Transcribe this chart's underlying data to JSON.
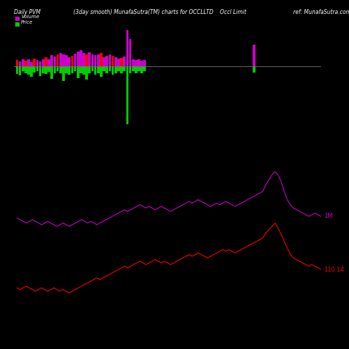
{
  "title_left": "Daily PVM",
  "title_center": "(3day smooth) MunafaSutra(TM) charts for OCCLLTD",
  "title_right_1": "Occl Limit",
  "title_right_2": "ref: MunafaSutra.com",
  "legend_volume_color": "#cc00cc",
  "legend_price_color": "#00cc00",
  "background_color": "#000000",
  "line_color_1m": "#cc00cc",
  "line_color_price": "#ff0000",
  "hline_color": "#777777",
  "label_1m": "1M",
  "label_price": "110.14",
  "bar_up_color": "#cc00cc",
  "bar_dn_color": "#00cc00",
  "bar_red_color": "#ff0000"
}
